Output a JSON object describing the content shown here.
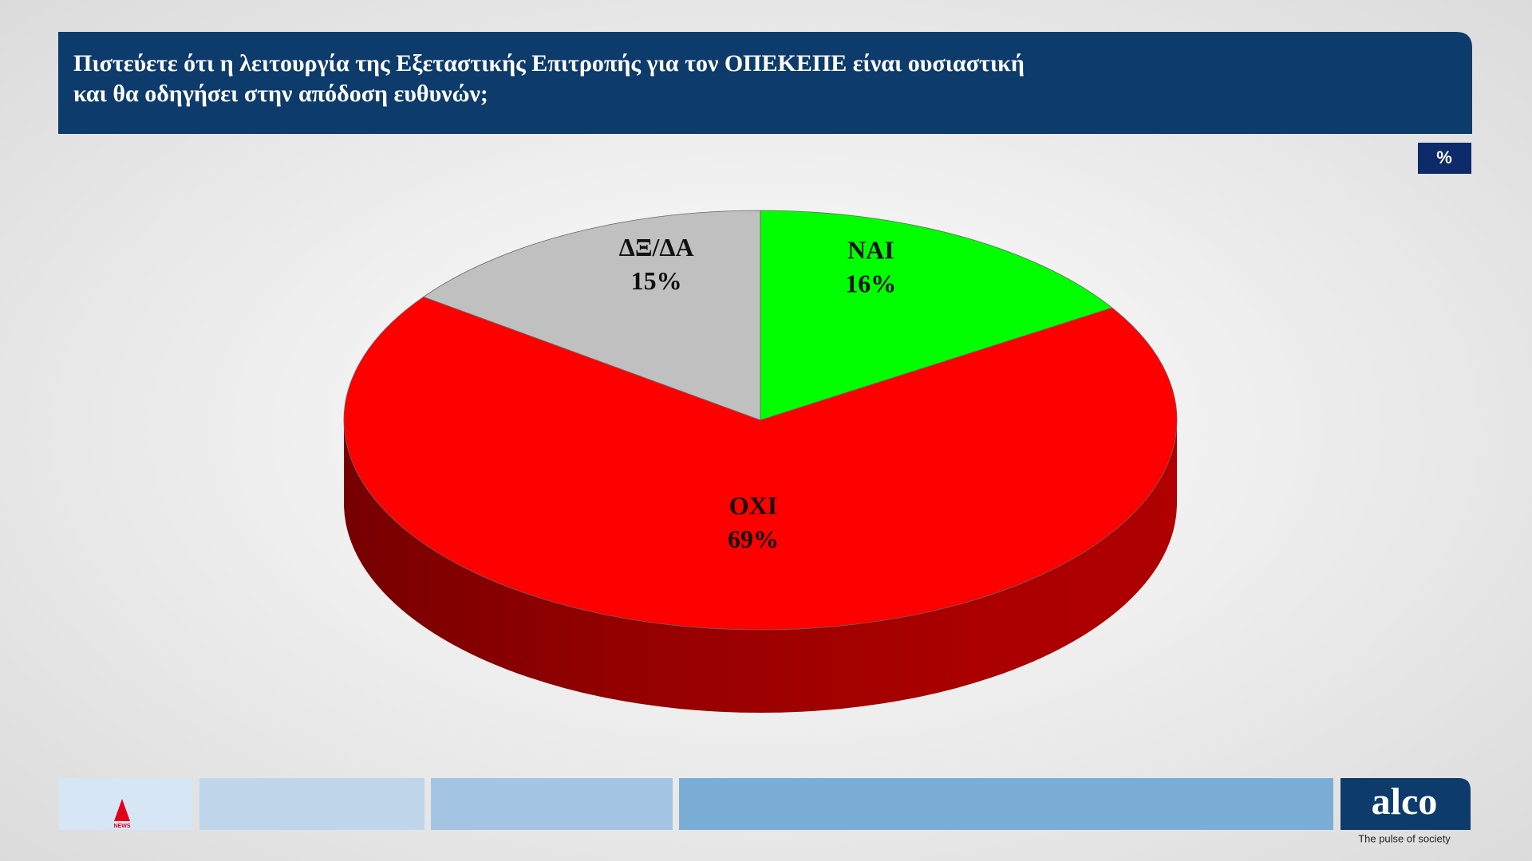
{
  "chart_data": {
    "type": "pie",
    "title": [
      "Πιστεύετε ότι η λειτουργία της Εξεταστικής Επιτροπής για τον ΟΠΕΚΕΠΕ είναι ουσιαστική",
      "και θα οδηγήσει στην απόδοση ευθυνών;"
    ],
    "unit_label": "%",
    "categories": [
      "ΝΑΙ",
      "ΟΧΙ",
      "ΔΞ/ΔΑ"
    ],
    "values": [
      16,
      69,
      15
    ],
    "value_labels": [
      "16%",
      "69%",
      "15%"
    ],
    "colors": [
      "#00ff00",
      "#ff0000",
      "#c0c0c0"
    ],
    "side_colors": [
      "#00b000",
      "#b00000",
      "#8a8a8a"
    ]
  },
  "footer": {
    "badge": "NEWS",
    "logo": "alco",
    "tagline": "The pulse of society"
  }
}
